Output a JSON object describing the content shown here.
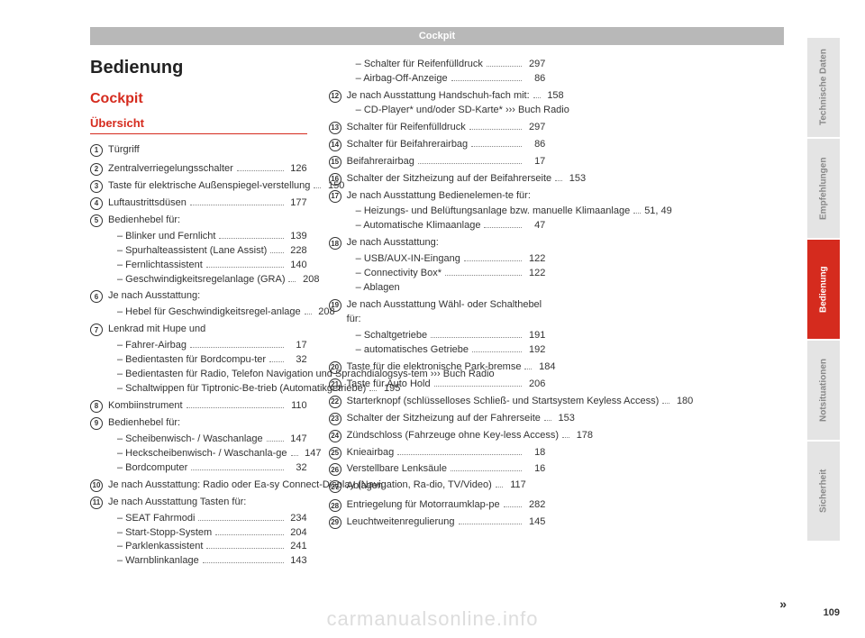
{
  "header": "Cockpit",
  "titles": {
    "main": "Bedienung",
    "section": "Cockpit",
    "sub": "Übersicht"
  },
  "page_number": "109",
  "continue_marker": "»",
  "watermark": "carmanualsonline.info",
  "tabs": [
    {
      "label": "Technische Daten",
      "active": false
    },
    {
      "label": "Empfehlungen",
      "active": false
    },
    {
      "label": "Bedienung",
      "active": true
    },
    {
      "label": "Notsituationen",
      "active": false
    },
    {
      "label": "Sicherheit",
      "active": false
    }
  ],
  "items": [
    {
      "num": "1",
      "intro": "Türgriff"
    },
    {
      "num": "2",
      "lines": [
        {
          "label": "Zentralverriegelungsschalter",
          "pg": "126"
        }
      ]
    },
    {
      "num": "3",
      "lines": [
        {
          "label": "Taste für elektrische Außenspiegel-verstellung",
          "pg": "150"
        }
      ]
    },
    {
      "num": "4",
      "lines": [
        {
          "label": "Luftaustrittsdüsen",
          "pg": "177"
        }
      ]
    },
    {
      "num": "5",
      "intro": "Bedienhebel für:",
      "lines": [
        {
          "label": "– Blinker und Fernlicht",
          "pg": "139",
          "sub": true
        },
        {
          "label": "– Spurhalteassistent (Lane Assist)",
          "pg": "228",
          "sub": true
        },
        {
          "label": "– Fernlichtassistent",
          "pg": "140",
          "sub": true
        },
        {
          "label": "– Geschwindigkeitsregelanlage (GRA)",
          "pg": "208",
          "sub": true
        }
      ]
    },
    {
      "num": "6",
      "intro": "Je nach Ausstattung:",
      "lines": [
        {
          "label": "– Hebel für Geschwindigkeitsregel-anlage",
          "pg": "208",
          "sub": true
        }
      ]
    },
    {
      "num": "7",
      "intro": "Lenkrad mit Hupe und",
      "lines": [
        {
          "label": "– Fahrer-Airbag",
          "pg": "17",
          "sub": true
        },
        {
          "label": "– Bedientasten für Bordcompu-ter",
          "pg": "32",
          "sub": true
        },
        {
          "label": "– Bedientasten für Radio, Telefon Navigation und Sprachdialogsys-tem ››› Buch Radio",
          "sub": true,
          "no_page": true
        },
        {
          "label": "– Schaltwippen für Tiptronic-Be-trieb (Automatikgetriebe)",
          "pg": "195",
          "sub": true
        }
      ]
    },
    {
      "num": "8",
      "lines": [
        {
          "label": "Kombiinstrument",
          "pg": "110"
        }
      ]
    },
    {
      "num": "9",
      "intro": "Bedienhebel für:",
      "lines": [
        {
          "label": "– Scheibenwisch- / Waschanlage",
          "pg": "147",
          "sub": true
        },
        {
          "label": "– Heckscheibenwisch- / Waschanla-ge",
          "pg": "147",
          "sub": true
        },
        {
          "label": "– Bordcomputer",
          "pg": "32",
          "sub": true
        }
      ]
    },
    {
      "num": "10",
      "lines": [
        {
          "label": "Je nach Ausstattung: Radio oder Ea-sy Connect-Display (Navigation, Ra-dio, TV/Video)",
          "pg": "117"
        }
      ]
    },
    {
      "num": "11",
      "intro": "Je nach Ausstattung Tasten für:",
      "lines": [
        {
          "label": "– SEAT Fahrmodi",
          "pg": "234",
          "sub": true
        },
        {
          "label": "– Start-Stopp-System",
          "pg": "204",
          "sub": true
        },
        {
          "label": "– Parklenkassistent",
          "pg": "241",
          "sub": true
        },
        {
          "label": "– Warnblinkanlage",
          "pg": "143",
          "sub": true
        },
        {
          "label": "– Schalter für Reifenfülldruck",
          "pg": "297",
          "sub": true
        },
        {
          "label": "– Airbag-Off-Anzeige",
          "pg": "86",
          "sub": true
        }
      ]
    },
    {
      "num": "12",
      "lines": [
        {
          "label": "Je nach Ausstattung Handschuh-fach mit:",
          "pg": "158"
        },
        {
          "label": "– CD-Player* und/oder SD-Karte* ››› Buch Radio",
          "sub": true,
          "no_page": true
        }
      ]
    },
    {
      "num": "13",
      "lines": [
        {
          "label": "Schalter für Reifenfülldruck",
          "pg": "297"
        }
      ]
    },
    {
      "num": "14",
      "lines": [
        {
          "label": "Schalter für Beifahrerairbag",
          "pg": "86"
        }
      ]
    },
    {
      "num": "15",
      "lines": [
        {
          "label": "Beifahrerairbag",
          "pg": "17"
        }
      ]
    },
    {
      "num": "16",
      "lines": [
        {
          "label": "Schalter der Sitzheizung auf der Beifahrerseite",
          "pg": "153"
        }
      ]
    },
    {
      "num": "17",
      "intro": "Je nach Ausstattung Bedienelemen-te für:",
      "lines": [
        {
          "label": "– Heizungs- und Belüftungsanlage bzw. manuelle Klimaanlage",
          "pg": "51, 49",
          "sub": true
        },
        {
          "label": "– Automatische Klimaanlage",
          "pg": "47",
          "sub": true
        }
      ]
    },
    {
      "num": "18",
      "intro": "Je nach Ausstattung:",
      "lines": [
        {
          "label": "– USB/AUX-IN-Eingang",
          "pg": "122",
          "sub": true
        },
        {
          "label": "– Connectivity Box*",
          "pg": "122",
          "sub": true
        },
        {
          "label": "– Ablagen",
          "sub": true,
          "no_page": true
        }
      ]
    },
    {
      "num": "19",
      "intro": "Je nach Ausstattung Wähl- oder Schalthebel für:",
      "lines": [
        {
          "label": "– Schaltgetriebe",
          "pg": "191",
          "sub": true
        },
        {
          "label": "– automatisches Getriebe",
          "pg": "192",
          "sub": true
        }
      ]
    },
    {
      "num": "20",
      "lines": [
        {
          "label": "Taste für die elektronische Park-bremse",
          "pg": "184"
        }
      ]
    },
    {
      "num": "21",
      "lines": [
        {
          "label": "Taste für Auto Hold",
          "pg": "206"
        }
      ]
    },
    {
      "num": "22",
      "lines": [
        {
          "label": "Starterknopf (schlüsselloses Schließ- und Startsystem Keyless Access)",
          "pg": "180"
        }
      ]
    },
    {
      "num": "23",
      "lines": [
        {
          "label": "Schalter der Sitzheizung auf der Fahrerseite",
          "pg": "153"
        }
      ]
    },
    {
      "num": "24",
      "lines": [
        {
          "label": "Zündschloss (Fahrzeuge ohne Key-less Access)",
          "pg": "178"
        }
      ]
    },
    {
      "num": "25",
      "lines": [
        {
          "label": "Knieairbag",
          "pg": "18"
        }
      ]
    },
    {
      "num": "26",
      "lines": [
        {
          "label": "Verstellbare Lenksäule",
          "pg": "16"
        }
      ]
    },
    {
      "num": "27",
      "intro": "Ablagen"
    },
    {
      "num": "28",
      "lines": [
        {
          "label": "Entriegelung für Motorraumklap-pe",
          "pg": "282"
        }
      ]
    },
    {
      "num": "29",
      "lines": [
        {
          "label": "Leuchtweitenregulierung",
          "pg": "145"
        }
      ]
    }
  ]
}
